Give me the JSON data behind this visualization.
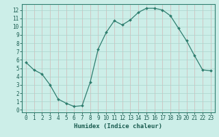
{
  "x": [
    0,
    1,
    2,
    3,
    4,
    5,
    6,
    7,
    8,
    9,
    10,
    11,
    12,
    13,
    14,
    15,
    16,
    17,
    18,
    19,
    20,
    21,
    22,
    23
  ],
  "y": [
    5.7,
    4.8,
    4.3,
    3.0,
    1.3,
    0.8,
    0.4,
    0.5,
    3.3,
    7.3,
    9.3,
    10.7,
    10.2,
    10.8,
    11.7,
    12.2,
    12.2,
    12.0,
    11.3,
    9.8,
    8.3,
    6.5,
    4.8,
    4.7
  ],
  "xlabel": "Humidex (Indice chaleur)",
  "xlim": [
    -0.5,
    23.5
  ],
  "ylim": [
    -0.3,
    12.7
  ],
  "yticks": [
    0,
    1,
    2,
    3,
    4,
    5,
    6,
    7,
    8,
    9,
    10,
    11,
    12
  ],
  "xticks": [
    0,
    1,
    2,
    3,
    4,
    5,
    6,
    7,
    8,
    9,
    10,
    11,
    12,
    13,
    14,
    15,
    16,
    17,
    18,
    19,
    20,
    21,
    22,
    23
  ],
  "line_color": "#2e7d6e",
  "marker": "D",
  "marker_size": 2.0,
  "bg_color": "#cceee8",
  "grid_color": "#aad4cc",
  "axis_color": "#2e7d6e",
  "tick_color": "#1a5c50",
  "label_color": "#1a5c50",
  "xlabel_fontsize": 6.5,
  "tick_fontsize": 5.5
}
